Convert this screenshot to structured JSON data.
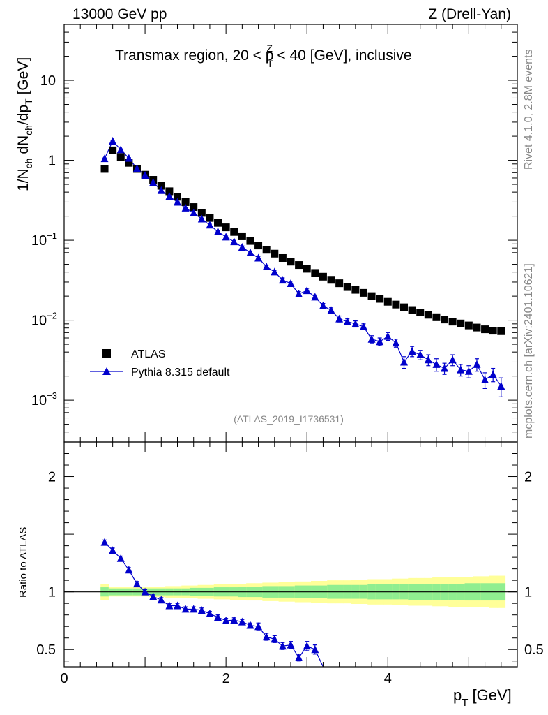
{
  "header": {
    "left": "13000 GeV pp",
    "right": "Z (Drell-Yan)"
  },
  "side": {
    "rivet": "Rivet 4.1.0,  2.8M events",
    "mcplots": "mcplots.cern.ch [arXiv:2401.10621]"
  },
  "chart_data": {
    "type": "scatter",
    "title": "Transmax region, 20 < pT^Z < 40 [GeV], inclusive",
    "title_parts": {
      "pre": "Transmax region, 20 < p",
      "sup": "Z",
      "sub": "T",
      "post": " < 40 [GeV], inclusive"
    },
    "ylabel": "1/N_ch dN_ch/dp_T [GeV]",
    "ylabel_parts": {
      "a": "1/N",
      "a_sub": "ch",
      "b": " dN",
      "b_sub": "ch",
      "c": "/dp",
      "c_sub": "T",
      "d": " [GeV]"
    },
    "xlabel": "p_T [GeV]",
    "xlabel_parts": {
      "a": "p",
      "a_sub": "T",
      "b": " [GeV]"
    },
    "ratio_ylabel": "Ratio to ATLAS",
    "analysis_id": "(ATLAS_2019_I1736531)",
    "xlim": [
      0,
      5.6
    ],
    "ylim": [
      0.0003,
      50
    ],
    "ratio_ylim": [
      0.35,
      2.3
    ],
    "x_ticks": [
      {
        "value": 0,
        "label": "0"
      },
      {
        "value": 2,
        "label": "2"
      },
      {
        "value": 4,
        "label": "4"
      }
    ],
    "y_ticks": [
      {
        "value": 10,
        "label": "10",
        "exp": ""
      },
      {
        "value": 1,
        "label": "1",
        "exp": ""
      },
      {
        "value": 0.1,
        "label": "10",
        "exp": "−1"
      },
      {
        "value": 0.01,
        "label": "10",
        "exp": "−2"
      },
      {
        "value": 0.001,
        "label": "10",
        "exp": "−3"
      }
    ],
    "ratio_y_ticks": [
      {
        "value": 2,
        "label": "2"
      },
      {
        "value": 1,
        "label": "1"
      },
      {
        "value": 0.5,
        "label": "0.5"
      }
    ],
    "legend": [
      {
        "name": "ATLAS",
        "marker": "square",
        "color": "#000000"
      },
      {
        "name": "Pythia 8.315 default",
        "marker": "triangle",
        "color": "#0000cc"
      }
    ],
    "x": [
      0.5,
      0.6,
      0.7,
      0.8,
      0.9,
      1.0,
      1.1,
      1.2,
      1.3,
      1.4,
      1.5,
      1.6,
      1.7,
      1.8,
      1.9,
      2.0,
      2.1,
      2.2,
      2.3,
      2.4,
      2.5,
      2.6,
      2.7,
      2.8,
      2.9,
      3.0,
      3.1,
      3.2,
      3.3,
      3.4,
      3.5,
      3.6,
      3.7,
      3.8,
      3.9,
      4.0,
      4.1,
      4.2,
      4.3,
      4.4,
      4.5,
      4.6,
      4.7,
      4.8,
      4.9,
      5.0,
      5.1,
      5.2,
      5.3,
      5.4
    ],
    "series": [
      {
        "name": "ATLAS",
        "color": "#000000",
        "values": [
          0.78,
          1.33,
          1.1,
          0.93,
          0.78,
          0.66,
          0.57,
          0.48,
          0.41,
          0.35,
          0.3,
          0.26,
          0.22,
          0.19,
          0.165,
          0.145,
          0.127,
          0.112,
          0.098,
          0.086,
          0.076,
          0.068,
          0.06,
          0.054,
          0.049,
          0.044,
          0.039,
          0.035,
          0.032,
          0.029,
          0.026,
          0.024,
          0.022,
          0.02,
          0.0185,
          0.017,
          0.0157,
          0.0145,
          0.0134,
          0.0125,
          0.0117,
          0.0109,
          0.0102,
          0.0096,
          0.0091,
          0.0086,
          0.0081,
          0.0077,
          0.0074,
          0.0073
        ]
      },
      {
        "name": "Pythia 8.315 default",
        "color": "#0000cc",
        "values": [
          1.05,
          1.74,
          1.36,
          1.06,
          0.79,
          0.65,
          0.53,
          0.42,
          0.355,
          0.3,
          0.253,
          0.22,
          0.185,
          0.155,
          0.128,
          0.11,
          0.096,
          0.082,
          0.07,
          0.06,
          0.0466,
          0.0402,
          0.0318,
          0.0288,
          0.0213,
          0.0235,
          0.0195,
          0.0152,
          0.0133,
          0.0104,
          0.0096,
          0.009,
          0.0083,
          0.0058,
          0.0054,
          0.0063,
          0.0052,
          0.003,
          0.0041,
          0.0037,
          0.0032,
          0.0028,
          0.0025,
          0.0032,
          0.0024,
          0.0023,
          0.0028,
          0.0018,
          0.0021,
          0.0015
        ],
        "errors": [
          0.02,
          0.03,
          0.025,
          0.02,
          0.015,
          0.012,
          0.01,
          0.008,
          0.007,
          0.006,
          0.005,
          0.005,
          0.004,
          0.004,
          0.003,
          0.003,
          0.003,
          0.003,
          0.003,
          0.003,
          0.002,
          0.002,
          0.002,
          0.002,
          0.0015,
          0.0015,
          0.0012,
          0.001,
          0.001,
          0.0009,
          0.0008,
          0.0008,
          0.0007,
          0.0006,
          0.0006,
          0.0007,
          0.0006,
          0.0005,
          0.0006,
          0.0005,
          0.0005,
          0.0005,
          0.0004,
          0.0005,
          0.0004,
          0.0004,
          0.0005,
          0.0004,
          0.0004,
          0.0004
        ]
      }
    ],
    "ratio": {
      "values": [
        1.43,
        1.36,
        1.29,
        1.19,
        1.07,
        1.0,
        0.96,
        0.93,
        0.88,
        0.88,
        0.85,
        0.85,
        0.84,
        0.81,
        0.78,
        0.75,
        0.755,
        0.74,
        0.71,
        0.7,
        0.61,
        0.59,
        0.53,
        0.54,
        0.43,
        0.53,
        0.5
      ],
      "errors": [
        0.02,
        0.02,
        0.02,
        0.02,
        0.02,
        0.02,
        0.02,
        0.02,
        0.02,
        0.02,
        0.02,
        0.02,
        0.02,
        0.02,
        0.02,
        0.02,
        0.02,
        0.02,
        0.02,
        0.03,
        0.03,
        0.03,
        0.03,
        0.03,
        0.03,
        0.04,
        0.04
      ],
      "drop_to_x": 3.2,
      "band_inner": [
        0.04,
        0.03,
        0.03,
        0.03,
        0.03,
        0.03,
        0.03,
        0.03,
        0.03,
        0.03,
        0.03,
        0.035,
        0.035,
        0.035,
        0.04,
        0.04,
        0.04,
        0.045,
        0.045,
        0.045,
        0.05,
        0.05,
        0.05,
        0.05,
        0.055,
        0.055,
        0.055,
        0.055,
        0.06,
        0.06,
        0.06,
        0.06,
        0.06,
        0.065,
        0.065,
        0.065,
        0.065,
        0.065,
        0.07,
        0.07,
        0.07,
        0.07,
        0.07,
        0.07,
        0.07,
        0.075,
        0.075,
        0.075,
        0.075,
        0.075
      ],
      "band_outer": [
        0.07,
        0.04,
        0.04,
        0.04,
        0.04,
        0.04,
        0.045,
        0.045,
        0.05,
        0.05,
        0.055,
        0.055,
        0.06,
        0.06,
        0.065,
        0.065,
        0.07,
        0.07,
        0.075,
        0.075,
        0.08,
        0.08,
        0.085,
        0.085,
        0.09,
        0.09,
        0.095,
        0.095,
        0.1,
        0.1,
        0.1,
        0.105,
        0.105,
        0.11,
        0.11,
        0.11,
        0.115,
        0.115,
        0.12,
        0.12,
        0.12,
        0.125,
        0.125,
        0.13,
        0.13,
        0.13,
        0.135,
        0.135,
        0.14,
        0.14
      ],
      "band_inner_color": "#90ee90",
      "band_outer_color": "#ffff99"
    }
  }
}
